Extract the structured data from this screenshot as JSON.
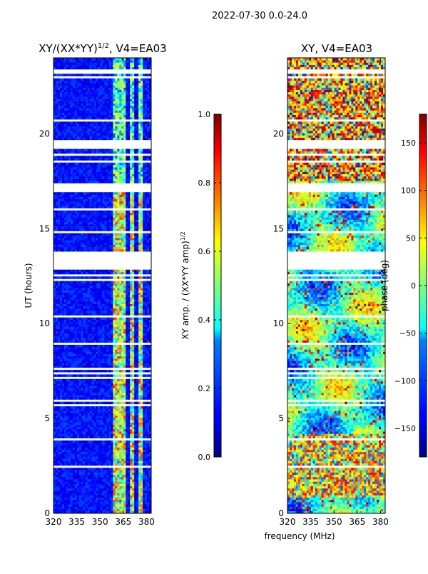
{
  "suptitle": "2022-07-30 0.0-24.0",
  "shared_xlabel": "frequency (MHz)",
  "chart_data": [
    {
      "type": "heatmap",
      "title_main": "XY/(XX*YY)",
      "title_sup": "1/2",
      "title_suffix": ", V4=EA03",
      "ylabel": "UT (hours)",
      "xlim": [
        320,
        383
      ],
      "ylim": [
        0,
        24
      ],
      "xticks": [
        320,
        335,
        350,
        365,
        380
      ],
      "yticks": [
        0,
        5,
        10,
        15,
        20
      ],
      "colorbar": {
        "label_main": "XY amp. / (XX*YY amp)",
        "label_sup": "1/2",
        "range": [
          0.0,
          1.0
        ],
        "ticks": [
          "0.0",
          "0.2",
          "0.4",
          "0.6",
          "0.8",
          "1.0"
        ],
        "colormap": "jet"
      }
    },
    {
      "type": "heatmap",
      "title": "XY, V4=EA03",
      "xlim": [
        320,
        383
      ],
      "ylim": [
        0,
        24
      ],
      "xticks": [
        320,
        335,
        350,
        365,
        380
      ],
      "yticks": [
        0,
        5,
        10,
        15,
        20
      ],
      "colorbar": {
        "label": "phase (deg)",
        "range": [
          -180,
          180
        ],
        "ticks": [
          "150",
          "100",
          "50",
          "0",
          "−50",
          "−100",
          "−150"
        ],
        "colormap": "jet"
      }
    }
  ]
}
